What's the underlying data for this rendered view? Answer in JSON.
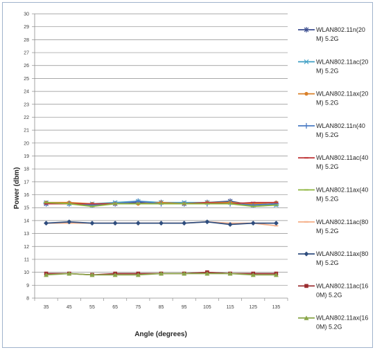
{
  "chart_data": {
    "type": "line",
    "title": "",
    "xlabel": "Angle (degrees)",
    "ylabel": "Power (dbm)",
    "x": [
      35,
      45,
      55,
      65,
      75,
      85,
      95,
      105,
      115,
      125,
      135
    ],
    "ylim": [
      8,
      30
    ],
    "yticks": [
      "8",
      "9",
      "10",
      "11",
      "12",
      "13",
      "14",
      "15",
      "16",
      "17",
      "18",
      "19",
      "20",
      "21",
      "22",
      "23",
      "24",
      "25",
      "26",
      "27",
      "28",
      "29",
      "30"
    ],
    "grid": "horizontal",
    "legend_position": "right",
    "series": [
      {
        "name": "WLAN802.11n(20M) 5.2G",
        "legend_lines": [
          "WLAN802.11n(20",
          "M) 5.2G"
        ],
        "color": "#3b4d8f",
        "marker": "x-star",
        "values": [
          15.3,
          15.3,
          15.2,
          15.3,
          15.4,
          15.4,
          15.3,
          15.4,
          15.5,
          15.2,
          15.3
        ]
      },
      {
        "name": "WLAN802.11ac(20M) 5.2G",
        "legend_lines": [
          "WLAN802.11ac(20",
          "M) 5.2G"
        ],
        "color": "#4aa5c8",
        "marker": "asterisk",
        "values": [
          15.4,
          15.3,
          15.3,
          15.4,
          15.5,
          15.4,
          15.4,
          15.4,
          15.4,
          15.3,
          15.2
        ]
      },
      {
        "name": "WLAN802.11ax(20M) 5.2G",
        "legend_lines": [
          "WLAN802.11ax(20",
          "M) 5.2G"
        ],
        "color": "#d9802a",
        "marker": "circle",
        "values": [
          15.4,
          15.4,
          15.3,
          15.3,
          15.3,
          15.4,
          15.3,
          15.4,
          15.4,
          15.3,
          15.4
        ]
      },
      {
        "name": "WLAN802.11n(40M) 5.2G",
        "legend_lines": [
          "WLAN802.11n(40",
          "M) 5.2G"
        ],
        "color": "#4a7bc4",
        "marker": "plus",
        "values": [
          15.3,
          15.3,
          15.2,
          15.3,
          15.5,
          15.3,
          15.3,
          15.3,
          15.3,
          15.2,
          15.3
        ]
      },
      {
        "name": "WLAN802.11ac(40M) 5.2G",
        "legend_lines": [
          "WLAN802.11ac(40",
          "M) 5.2G"
        ],
        "color": "#c0393b",
        "marker": "dash",
        "values": [
          15.3,
          15.3,
          15.3,
          15.3,
          15.3,
          15.3,
          15.3,
          15.4,
          15.3,
          15.4,
          15.4
        ]
      },
      {
        "name": "WLAN802.11ax(40M) 5.2G",
        "legend_lines": [
          "WLAN802.11ax(40",
          "M) 5.2G"
        ],
        "color": "#8cb43c",
        "marker": "dash",
        "values": [
          15.4,
          15.3,
          15.1,
          15.3,
          15.3,
          15.3,
          15.3,
          15.3,
          15.3,
          15.1,
          15.2
        ]
      },
      {
        "name": "WLAN802.11ac(80M) 5.2G",
        "legend_lines": [
          "WLAN802.11ac(80",
          "M) 5.2G"
        ],
        "color": "#f5b08a",
        "marker": "dash",
        "values": [
          13.8,
          13.8,
          13.8,
          13.8,
          13.8,
          13.8,
          13.8,
          13.9,
          13.8,
          13.8,
          13.6
        ]
      },
      {
        "name": "WLAN802.11ax(80M) 5.2G",
        "legend_lines": [
          "WLAN802.11ax(80",
          "M) 5.2G"
        ],
        "color": "#2f4d7e",
        "marker": "diamond",
        "values": [
          13.8,
          13.9,
          13.8,
          13.8,
          13.8,
          13.8,
          13.8,
          13.9,
          13.7,
          13.8,
          13.8
        ]
      },
      {
        "name": "WLAN802.11ac(160M) 5.2G",
        "legend_lines": [
          "WLAN802.11ac(16",
          "0M) 5.2G"
        ],
        "color": "#9b2d30",
        "marker": "square",
        "values": [
          9.9,
          9.9,
          9.8,
          9.9,
          9.9,
          9.9,
          9.9,
          10.0,
          9.9,
          9.9,
          9.9
        ]
      },
      {
        "name": "WLAN802.11ax(160M) 5.2G",
        "legend_lines": [
          "WLAN802.11ax(16",
          "0M) 5.2G"
        ],
        "color": "#8aa64a",
        "marker": "triangle",
        "values": [
          9.8,
          9.9,
          9.8,
          9.8,
          9.8,
          9.9,
          9.9,
          9.9,
          9.9,
          9.8,
          9.8
        ]
      }
    ]
  }
}
